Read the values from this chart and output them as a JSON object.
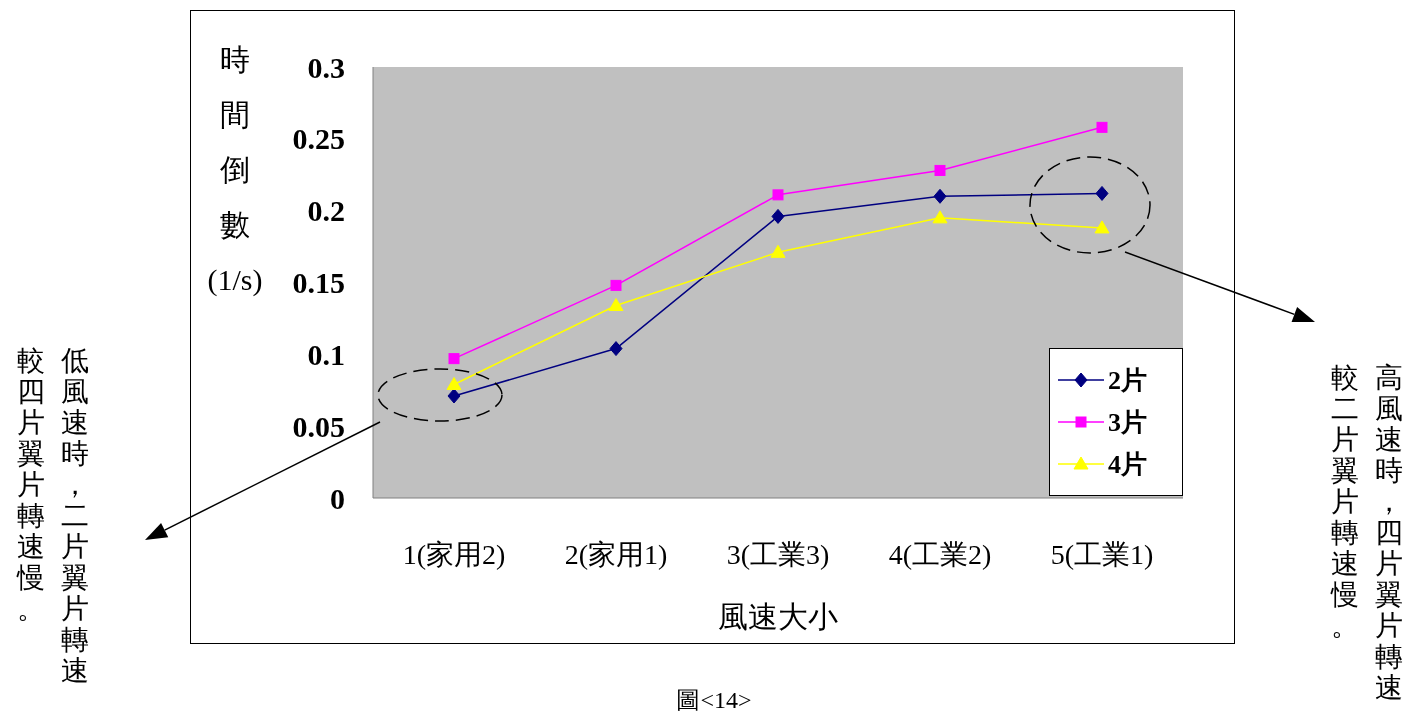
{
  "chart_data": {
    "type": "line",
    "categories": [
      "1(家用2)",
      "2(家用1)",
      "3(工業3)",
      "4(工業2)",
      "5(工業1)"
    ],
    "series": [
      {
        "name": "2片",
        "color": "#000080",
        "marker": "diamond",
        "values": [
          0.071,
          0.104,
          0.196,
          0.21,
          0.212
        ]
      },
      {
        "name": "3片",
        "color": "#ff00ff",
        "marker": "square",
        "values": [
          0.097,
          0.148,
          0.211,
          0.228,
          0.258
        ]
      },
      {
        "name": "4片",
        "color": "#ffff00",
        "marker": "triangle",
        "values": [
          0.079,
          0.134,
          0.171,
          0.195,
          0.188
        ]
      }
    ],
    "xlabel": "風速大小",
    "ylabel": "時間倒數(1/s)",
    "ylim": [
      0,
      0.3
    ],
    "yticks": [
      0,
      0.05,
      0.1,
      0.15,
      0.2,
      0.25,
      0.3
    ],
    "grid": false,
    "legend": "bottom right",
    "line_style": "solid",
    "annotations": [
      "低風速時，二片翼片轉速",
      "較四片翼片轉速慢。",
      "高風速時，四片翼片轉速",
      "較二片翼片轉速慢。",
      "圖<14>"
    ]
  }
}
